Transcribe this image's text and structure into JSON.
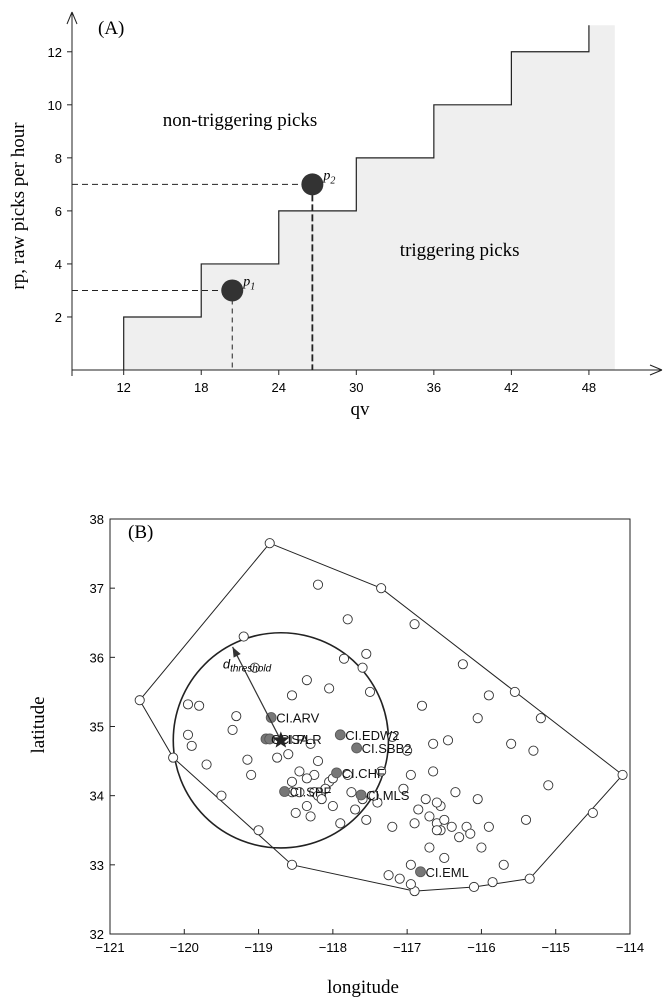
{
  "panelA": {
    "chart_data": {
      "type": "line",
      "panel_label": "(A)",
      "xlabel": "qv",
      "ylabel": "rp, raw picks per hour",
      "xlim": [
        8,
        53.5
      ],
      "ylim": [
        0,
        13.5
      ],
      "xticks": [
        12,
        18,
        24,
        30,
        36,
        42,
        48
      ],
      "yticks": [
        2,
        4,
        6,
        8,
        10,
        12
      ],
      "grid": false,
      "staircase": [
        [
          12,
          0
        ],
        [
          12,
          2
        ],
        [
          18,
          2
        ],
        [
          18,
          4
        ],
        [
          24,
          4
        ],
        [
          24,
          6
        ],
        [
          30,
          6
        ],
        [
          30,
          8
        ],
        [
          36,
          8
        ],
        [
          36,
          10
        ],
        [
          42,
          10
        ],
        [
          42,
          12
        ],
        [
          48,
          12
        ],
        [
          48,
          13
        ]
      ],
      "shaded_region_right": 50,
      "region_labels": [
        {
          "text": "non-triggering picks",
          "x": 21,
          "y": 9.2
        },
        {
          "text": "triggering picks",
          "x": 38,
          "y": 4.3
        }
      ],
      "points": [
        {
          "label": "p",
          "sub": "1",
          "x": 20.4,
          "y": 3
        },
        {
          "label": "p",
          "sub": "2",
          "x": 26.6,
          "y": 7
        }
      ]
    }
  },
  "panelB": {
    "chart_data": {
      "type": "scatter",
      "panel_label": "(B)",
      "xlabel": "longitude",
      "ylabel": "latitude",
      "xlim": [
        -121,
        -114
      ],
      "ylim": [
        32,
        38
      ],
      "xticks": [
        -121,
        -120,
        -119,
        -118,
        -117,
        -116,
        -115,
        -114
      ],
      "yticks": [
        32,
        33,
        34,
        35,
        36,
        37,
        38
      ],
      "grid": false,
      "epicenter": {
        "lon": -118.7,
        "lat": 34.8
      },
      "threshold_radius_deg": 1.5,
      "threshold_label": {
        "main": "d",
        "sub": "threshold"
      },
      "arrow_to": {
        "lon": -119.35,
        "lat": 36.15
      },
      "hull": [
        [
          -120.6,
          35.38
        ],
        [
          -118.85,
          37.65
        ],
        [
          -117.35,
          37.0
        ],
        [
          -114.1,
          34.3
        ],
        [
          -115.35,
          32.8
        ],
        [
          -116.1,
          32.68
        ],
        [
          -116.9,
          32.62
        ],
        [
          -118.55,
          33.0
        ],
        [
          -120.15,
          34.55
        ],
        [
          -120.6,
          35.38
        ]
      ],
      "named_stations": [
        {
          "name": "CI.ARV",
          "lon": -118.83,
          "lat": 35.13
        },
        {
          "name": "CI.ISA",
          "lon": -118.9,
          "lat": 34.82
        },
        {
          "name": "CI.PLR",
          "lon": -118.85,
          "lat": 34.82
        },
        {
          "name": "CI.EDW2",
          "lon": -117.9,
          "lat": 34.88
        },
        {
          "name": "CI.SBB2",
          "lon": -117.68,
          "lat": 34.69
        },
        {
          "name": "CI.CHF",
          "lon": -117.95,
          "lat": 34.33
        },
        {
          "name": "CI.SPF",
          "lon": -118.65,
          "lat": 34.06
        },
        {
          "name": "CI.MLS",
          "lon": -117.62,
          "lat": 34.01
        },
        {
          "name": "CI.EML",
          "lon": -116.82,
          "lat": 32.9
        }
      ],
      "named_labels": [
        "CI.ARV",
        "CI.ISA",
        "CI.PLR",
        "CI.EDW2",
        "CI.SBB2",
        "CI.CHF",
        "CI.SPF",
        "CI.MLS",
        "CI.EML"
      ],
      "stations": [
        [
          -120.6,
          35.38
        ],
        [
          -118.85,
          37.65
        ],
        [
          -117.35,
          37.0
        ],
        [
          -114.1,
          34.3
        ],
        [
          -115.35,
          32.8
        ],
        [
          -116.1,
          32.68
        ],
        [
          -116.9,
          32.62
        ],
        [
          -118.55,
          33.0
        ],
        [
          -120.15,
          34.55
        ],
        [
          -118.2,
          37.05
        ],
        [
          -117.8,
          36.55
        ],
        [
          -116.9,
          36.48
        ],
        [
          -119.2,
          36.3
        ],
        [
          -117.55,
          36.05
        ],
        [
          -118.35,
          35.67
        ],
        [
          -117.85,
          35.98
        ],
        [
          -117.6,
          35.85
        ],
        [
          -119.05,
          35.85
        ],
        [
          -118.55,
          35.45
        ],
        [
          -118.05,
          35.55
        ],
        [
          -117.5,
          35.5
        ],
        [
          -116.8,
          35.3
        ],
        [
          -116.25,
          35.9
        ],
        [
          -115.9,
          35.45
        ],
        [
          -115.55,
          35.5
        ],
        [
          -115.2,
          35.12
        ],
        [
          -116.05,
          35.12
        ],
        [
          -119.95,
          35.32
        ],
        [
          -119.8,
          35.3
        ],
        [
          -119.3,
          35.15
        ],
        [
          -119.95,
          34.88
        ],
        [
          -119.9,
          34.72
        ],
        [
          -119.35,
          34.95
        ],
        [
          -119.7,
          34.45
        ],
        [
          -119.15,
          34.52
        ],
        [
          -119.1,
          34.3
        ],
        [
          -119.5,
          34.0
        ],
        [
          -119.0,
          33.5
        ],
        [
          -118.3,
          34.75
        ],
        [
          -118.2,
          34.5
        ],
        [
          -118.05,
          34.2
        ],
        [
          -118.55,
          34.2
        ],
        [
          -118.45,
          34.05
        ],
        [
          -118.25,
          34.05
        ],
        [
          -118.1,
          34.1
        ],
        [
          -118.0,
          33.85
        ],
        [
          -118.35,
          33.85
        ],
        [
          -118.5,
          33.75
        ],
        [
          -118.3,
          33.7
        ],
        [
          -117.9,
          33.6
        ],
        [
          -117.7,
          33.8
        ],
        [
          -117.55,
          33.65
        ],
        [
          -117.4,
          33.9
        ],
        [
          -117.2,
          33.55
        ],
        [
          -116.85,
          33.8
        ],
        [
          -116.6,
          33.6
        ],
        [
          -116.55,
          33.5
        ],
        [
          -116.4,
          33.55
        ],
        [
          -116.7,
          33.25
        ],
        [
          -116.95,
          33.0
        ],
        [
          -116.95,
          32.72
        ],
        [
          -117.1,
          32.8
        ],
        [
          -117.25,
          32.85
        ],
        [
          -116.5,
          33.1
        ],
        [
          -116.2,
          33.55
        ],
        [
          -115.9,
          33.55
        ],
        [
          -115.7,
          33.0
        ],
        [
          -115.4,
          33.65
        ],
        [
          -116.0,
          33.25
        ],
        [
          -115.85,
          32.75
        ],
        [
          -116.05,
          33.95
        ],
        [
          -116.35,
          34.05
        ],
        [
          -116.65,
          34.35
        ],
        [
          -116.45,
          34.8
        ],
        [
          -116.65,
          34.75
        ],
        [
          -117.0,
          34.65
        ],
        [
          -117.2,
          34.85
        ],
        [
          -117.05,
          34.1
        ],
        [
          -116.75,
          33.95
        ],
        [
          -116.55,
          33.85
        ],
        [
          -116.5,
          33.65
        ],
        [
          -116.3,
          33.4
        ],
        [
          -116.6,
          33.5
        ],
        [
          -116.15,
          33.45
        ],
        [
          -115.6,
          34.75
        ],
        [
          -115.3,
          34.65
        ],
        [
          -114.5,
          33.75
        ],
        [
          -115.1,
          34.15
        ],
        [
          -118.75,
          34.55
        ],
        [
          -118.6,
          34.6
        ],
        [
          -118.25,
          34.3
        ],
        [
          -118.35,
          34.25
        ],
        [
          -118.2,
          34.0
        ],
        [
          -118.0,
          34.25
        ],
        [
          -118.15,
          33.95
        ],
        [
          -117.8,
          34.3
        ],
        [
          -117.75,
          34.05
        ],
        [
          -117.35,
          34.35
        ],
        [
          -116.95,
          34.3
        ],
        [
          -118.55,
          34.05
        ],
        [
          -118.45,
          34.35
        ],
        [
          -117.6,
          33.95
        ],
        [
          -117.45,
          34.0
        ],
        [
          -116.6,
          33.9
        ],
        [
          -116.7,
          33.7
        ],
        [
          -116.9,
          33.6
        ]
      ]
    }
  }
}
